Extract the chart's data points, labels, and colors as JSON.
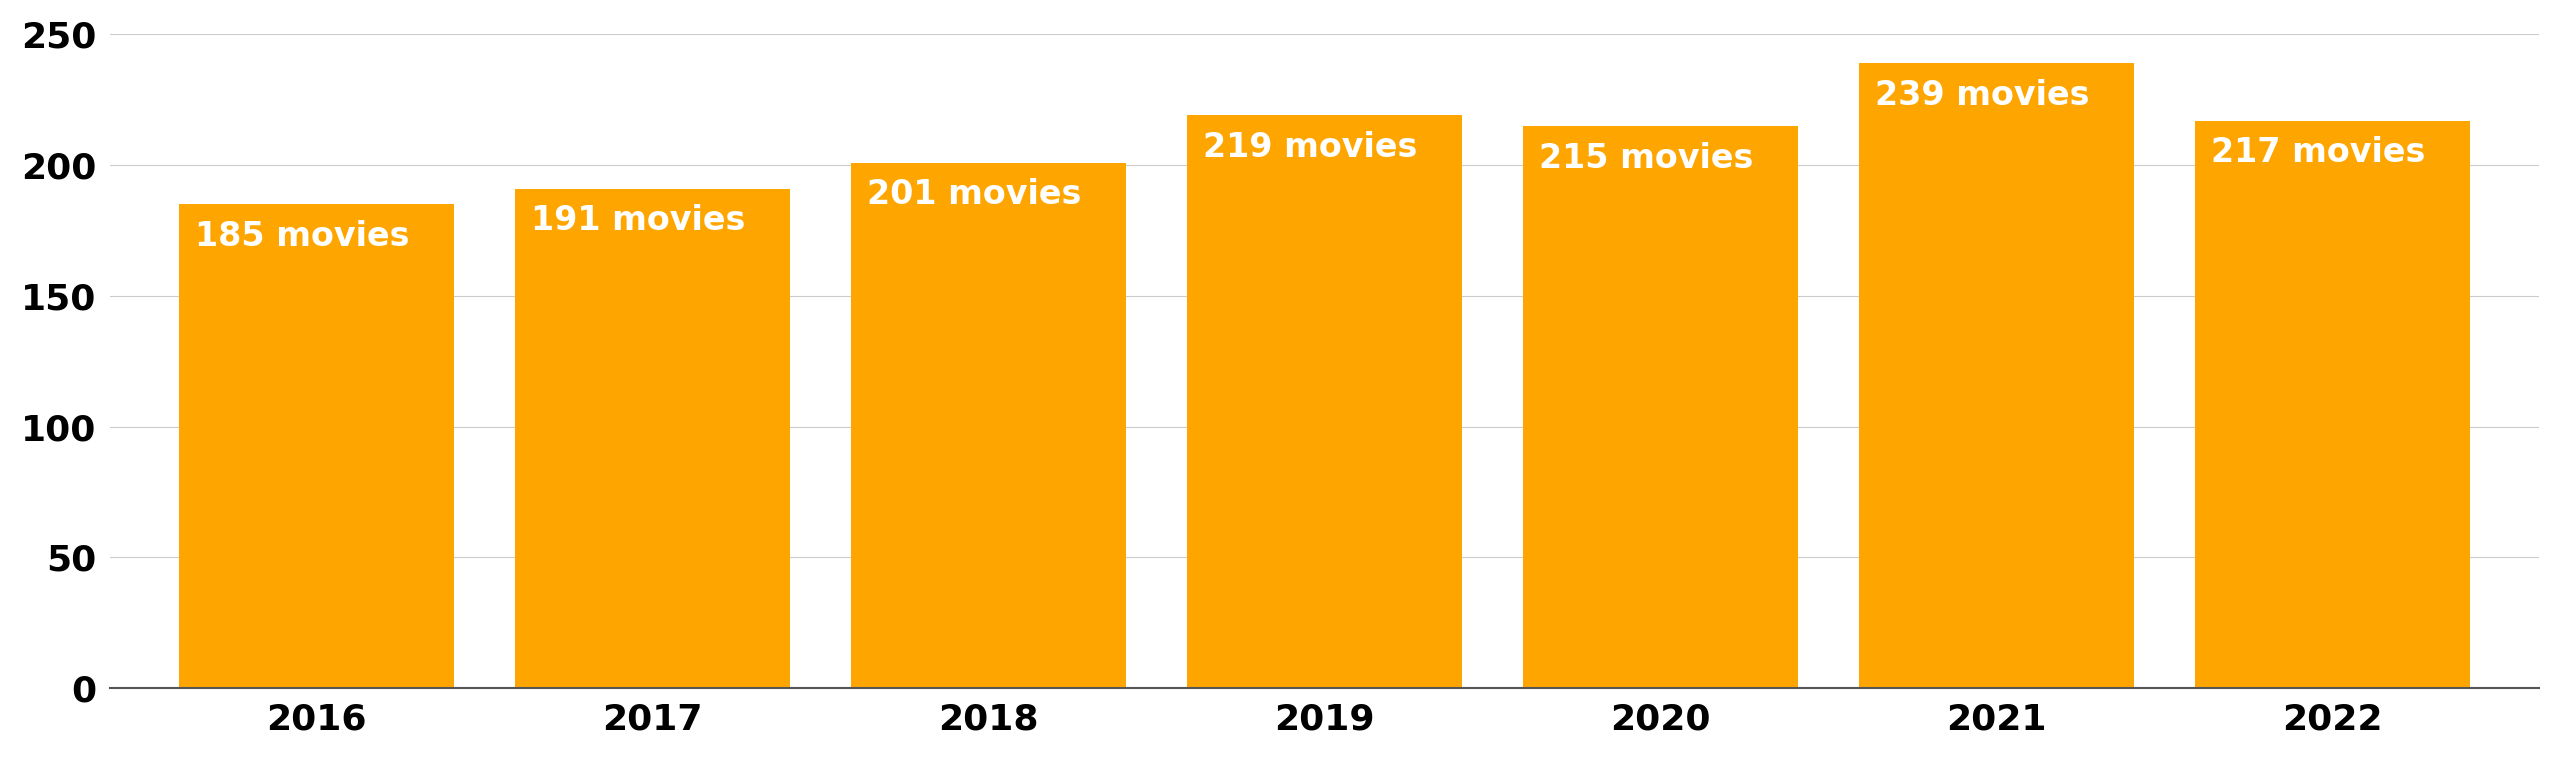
{
  "years": [
    "2016",
    "2017",
    "2018",
    "2019",
    "2020",
    "2021",
    "2022"
  ],
  "values": [
    185,
    191,
    201,
    219,
    215,
    239,
    217
  ],
  "labels": [
    "185 movies",
    "191 movies",
    "201 movies",
    "219 movies",
    "215 movies",
    "239 movies",
    "217 movies"
  ],
  "bar_color": "#FFA500",
  "label_color": "#FFFFFF",
  "background_color": "#FFFFFF",
  "ylim": [
    0,
    250
  ],
  "yticks": [
    0,
    50,
    100,
    150,
    200,
    250
  ],
  "grid_color": "#CCCCCC",
  "tick_label_fontsize": 26,
  "bar_label_fontsize": 24,
  "bar_width": 0.82
}
